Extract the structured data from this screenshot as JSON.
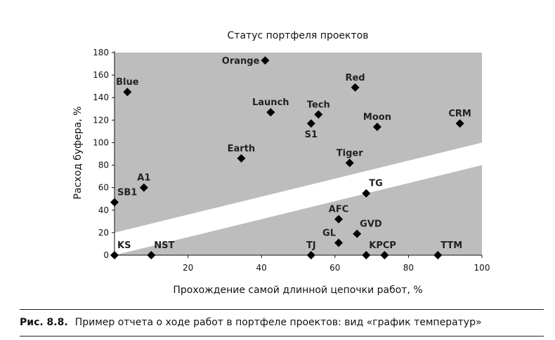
{
  "chart_data": {
    "type": "scatter",
    "title": "Статус портфеля проектов",
    "xlabel": "Прохождение самой длинной цепочки работ, %",
    "ylabel": "Расход буфера, %",
    "xlim": [
      0,
      100
    ],
    "ylim": [
      0,
      180
    ],
    "xticks": [
      "20",
      "40",
      "60",
      "80",
      "100"
    ],
    "xtick_values": [
      20,
      40,
      60,
      80,
      100
    ],
    "yticks": [
      "0",
      "20",
      "40",
      "60",
      "80",
      "100",
      "120",
      "140",
      "160",
      "180"
    ],
    "ytick_values": [
      0,
      20,
      40,
      60,
      80,
      100,
      120,
      140,
      160,
      180
    ],
    "zones": {
      "upper_boundary": [
        [
          0,
          20
        ],
        [
          100,
          100
        ]
      ],
      "lower_boundary": [
        [
          0,
          0
        ],
        [
          100,
          80
        ]
      ],
      "shade_color": "#bdbdbd"
    },
    "points": [
      {
        "name": "Orange",
        "x": 41,
        "y": 173,
        "label_pos": "left"
      },
      {
        "name": "Blue",
        "x": 3.5,
        "y": 145,
        "label_pos": "above"
      },
      {
        "name": "Red",
        "x": 65.5,
        "y": 149,
        "label_pos": "above"
      },
      {
        "name": "Launch",
        "x": 42.5,
        "y": 127,
        "label_pos": "above"
      },
      {
        "name": "Tech",
        "x": 55.5,
        "y": 125,
        "label_pos": "above"
      },
      {
        "name": "S1",
        "x": 53.5,
        "y": 117,
        "label_pos": "below"
      },
      {
        "name": "Moon",
        "x": 71.5,
        "y": 114,
        "label_pos": "above"
      },
      {
        "name": "CRM",
        "x": 94,
        "y": 117,
        "label_pos": "above"
      },
      {
        "name": "Earth",
        "x": 34.5,
        "y": 86,
        "label_pos": "above"
      },
      {
        "name": "Tiger",
        "x": 64,
        "y": 82,
        "label_pos": "above"
      },
      {
        "name": "A1",
        "x": 8,
        "y": 60,
        "label_pos": "above"
      },
      {
        "name": "TG",
        "x": 68.5,
        "y": 55,
        "label_pos": "above-right"
      },
      {
        "name": "SB1",
        "x": 0,
        "y": 47,
        "label_pos": "above-right"
      },
      {
        "name": "AFC",
        "x": 61,
        "y": 32,
        "label_pos": "above"
      },
      {
        "name": "GVD",
        "x": 66,
        "y": 19,
        "label_pos": "above-right"
      },
      {
        "name": "GL",
        "x": 61,
        "y": 11,
        "label_pos": "above-left"
      },
      {
        "name": "KS",
        "x": 0,
        "y": 0,
        "label_pos": "above-right"
      },
      {
        "name": "NST",
        "x": 10,
        "y": 0,
        "label_pos": "above-right"
      },
      {
        "name": "TJ",
        "x": 53.5,
        "y": 0,
        "label_pos": "above"
      },
      {
        "name": "KPCP",
        "x": 68.5,
        "y": 0,
        "label_pos": "above-right"
      },
      {
        "name": "TTM",
        "x": 88,
        "y": 0,
        "label_pos": "above-right"
      },
      {
        "name": "",
        "x": 73.5,
        "y": 0,
        "label_pos": "none"
      }
    ]
  },
  "caption": {
    "label": "Рис. 8.8.",
    "text": "Пример отчета о ходе работ в портфеле проектов: вид «график температур»"
  }
}
